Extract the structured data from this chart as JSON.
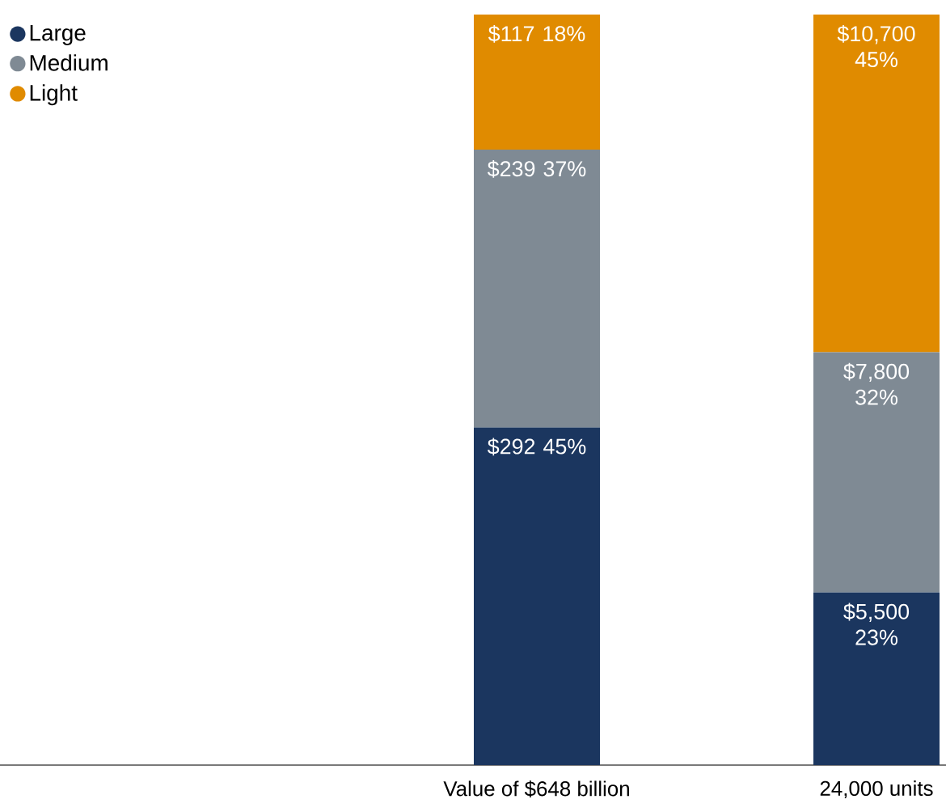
{
  "chart_data": {
    "type": "bar",
    "stacked": true,
    "categories": [
      "Value of $648 billion",
      "24,000 units"
    ],
    "series": [
      {
        "name": "Large",
        "color": "#1b365f",
        "values": [
          45,
          23
        ],
        "value_labels": [
          "$292 45%",
          "$5,500 23%"
        ]
      },
      {
        "name": "Medium",
        "color": "#7f8a94",
        "values": [
          37,
          32
        ],
        "value_labels": [
          "$239 37%",
          "$7,800 32%"
        ]
      },
      {
        "name": "Light",
        "color": "#e08b00",
        "values": [
          18,
          45
        ],
        "value_labels": [
          "$117 18%",
          "$10,700 45%"
        ]
      }
    ],
    "ylim": [
      0,
      100
    ],
    "tick_labels": "x",
    "legend": "top left",
    "marker": "circle"
  }
}
